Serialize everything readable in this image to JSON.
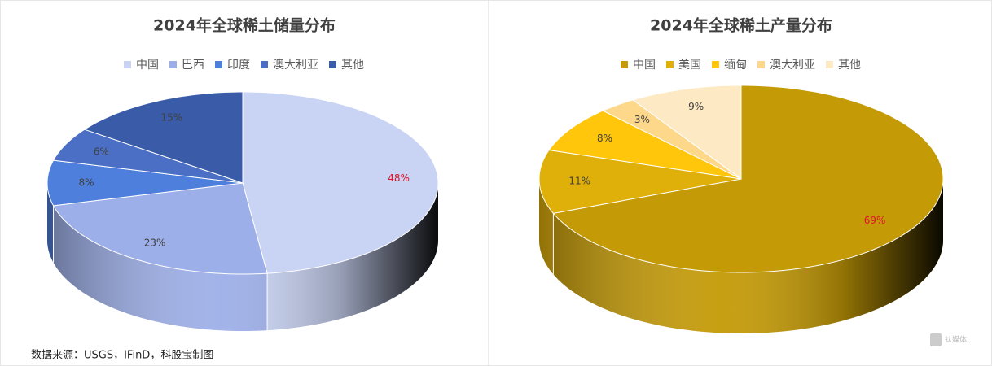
{
  "chart_data": [
    {
      "type": "pie",
      "title": "2024年全球稀土储量分布",
      "categories": [
        "中国",
        "巴西",
        "印度",
        "澳大利亚",
        "其他"
      ],
      "values": [
        48,
        23,
        8,
        6,
        15
      ],
      "value_labels": [
        "48%",
        "23%",
        "8%",
        "6%",
        "15%"
      ],
      "colors": [
        "#c9d3f3",
        "#9dafe8",
        "#4f7fdc",
        "#4a6fc4",
        "#3a5ca8"
      ]
    },
    {
      "type": "pie",
      "title": "2024年全球稀土产量分布",
      "categories": [
        "中国",
        "美国",
        "缅甸",
        "澳大利亚",
        "其他"
      ],
      "values": [
        69,
        11,
        8,
        3,
        9
      ],
      "value_labels": [
        "69%",
        "11%",
        "8%",
        "3%",
        "9%"
      ],
      "colors": [
        "#c49a06",
        "#e0b00a",
        "#ffc60b",
        "#fdd88a",
        "#fde9c4"
      ]
    }
  ],
  "source": "数据来源：USGS，IFinD，科股宝制图",
  "watermark": "钛媒体"
}
